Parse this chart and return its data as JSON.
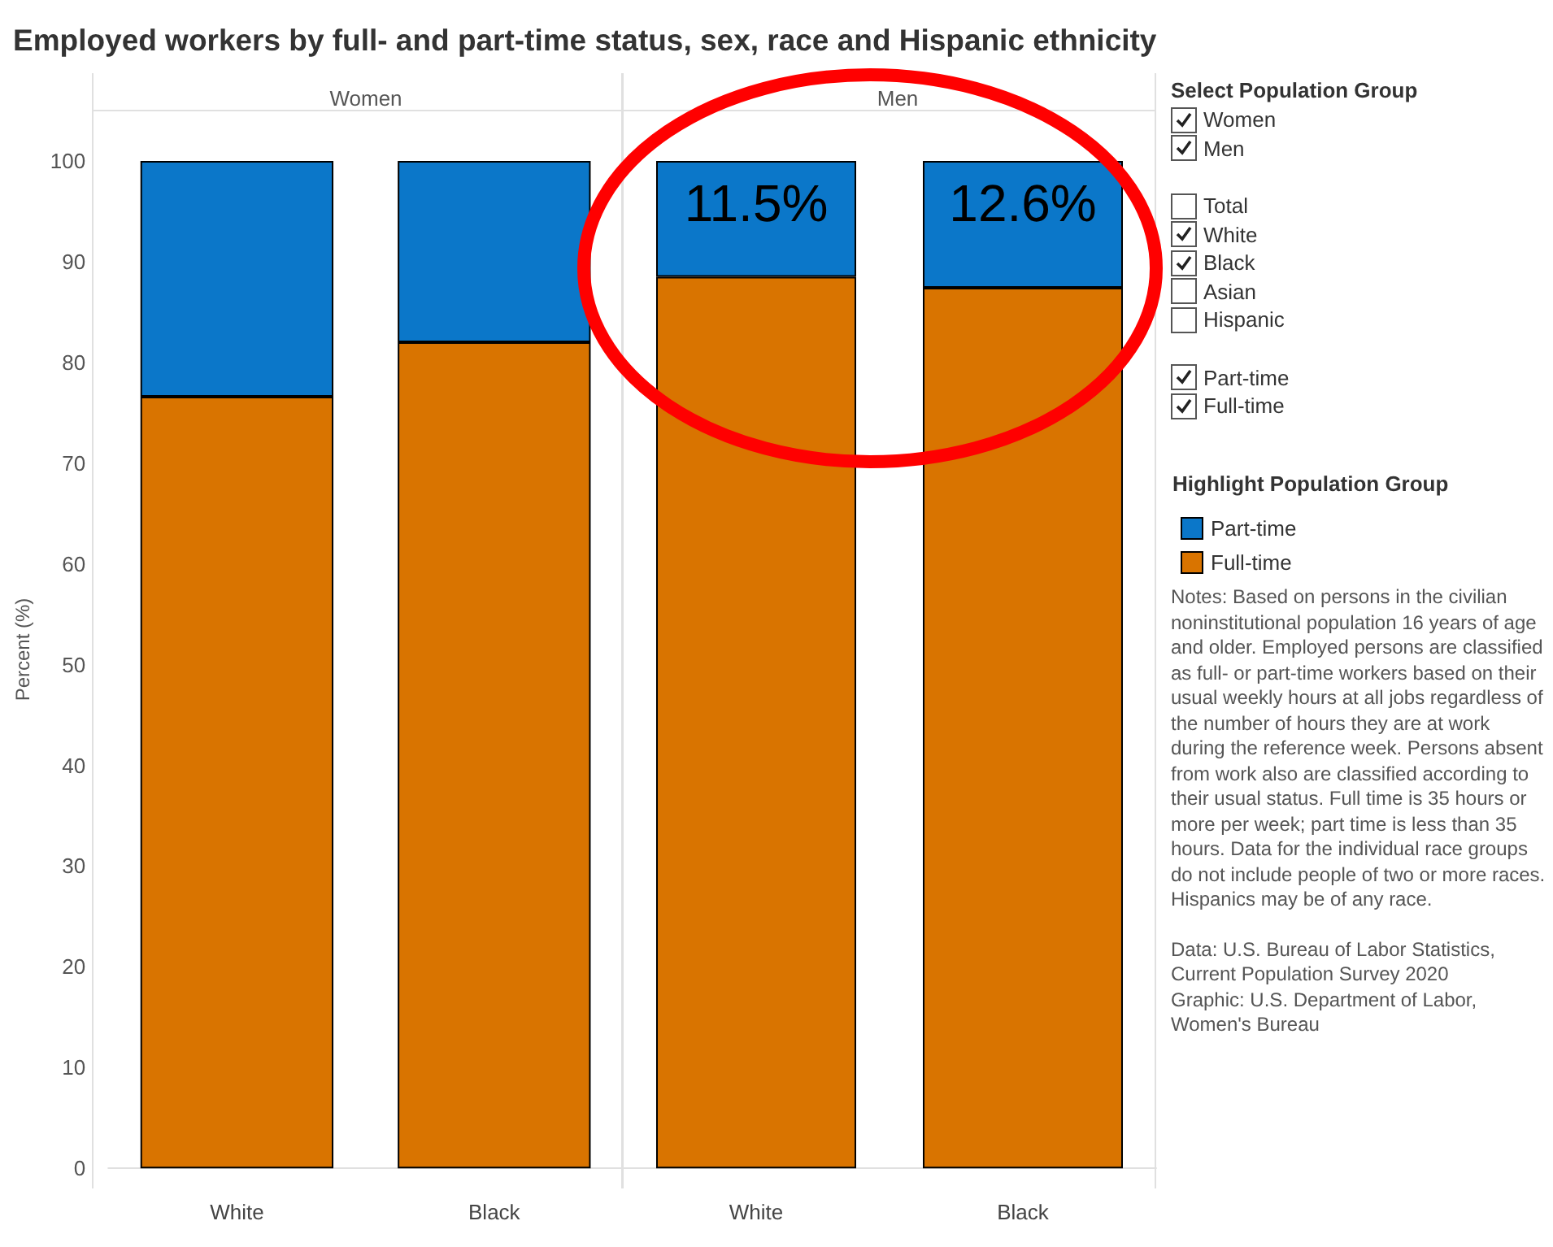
{
  "chart_data": [
    {
      "type": "bar",
      "title": "Employed workers by full- and part-time status, sex, race and Hispanic ethnicity",
      "subtitle": "Women",
      "ylabel": "Percent (%)",
      "categories": [
        "White",
        "Black"
      ],
      "stacked": true,
      "ylim": [
        -2,
        105
      ],
      "yticks": [
        0,
        10,
        20,
        30,
        40,
        50,
        60,
        70,
        80,
        90,
        100
      ],
      "series": [
        {
          "color": "#d97400",
          "values": [
            76.6,
            82.0
          ]
        },
        {
          "color": "#0b77c9",
          "values": [
            23.4,
            18.0
          ]
        }
      ]
    },
    {
      "type": "bar",
      "subtitle": "Men",
      "categories": [
        "White",
        "Black"
      ],
      "stacked": true,
      "ylim": [
        -2,
        105
      ],
      "yticks": [
        0,
        10,
        20,
        30,
        40,
        50,
        60,
        70,
        80,
        90,
        100
      ],
      "tick_labels": "x",
      "legend": "right",
      "legend_title": "Highlight Population Group",
      "series": [
        {
          "name": "Full-time",
          "color": "#d97400",
          "values": [
            88.5,
            87.4
          ]
        },
        {
          "name": "Part-time",
          "color": "#0b77c9",
          "values": [
            11.5,
            12.6
          ],
          "value_labels": [
            "11.5%",
            "12.6%"
          ]
        }
      ]
    },
    {
      "type": "other",
      "title": "Select Population Group",
      "categories": [
        "Women",
        "Men",
        "Total",
        "White",
        "Black",
        "Asian",
        "Hispanic",
        "Part-time",
        "Full-time"
      ],
      "annotations": [
        "Notes: Based on persons in the civilian noninstitutional population 16 years of age and older. Employed persons are classified as full- or part-time workers based on their usual weekly hours at all jobs regardless of the number of hours they are at work during the reference week. Persons absent from work also are classified according to their usual status. Full time is 35 hours or more per week; part time is less than 35 hours. Data for the individual race groups do not include people of two or more races. Hispanics may be of any race.",
        "Data: U.S. Bureau of Labor Statistics, Current Population Survey 2020",
        "Graphic: U.S. Department of Labor, Women's Bureau"
      ]
    }
  ]
}
